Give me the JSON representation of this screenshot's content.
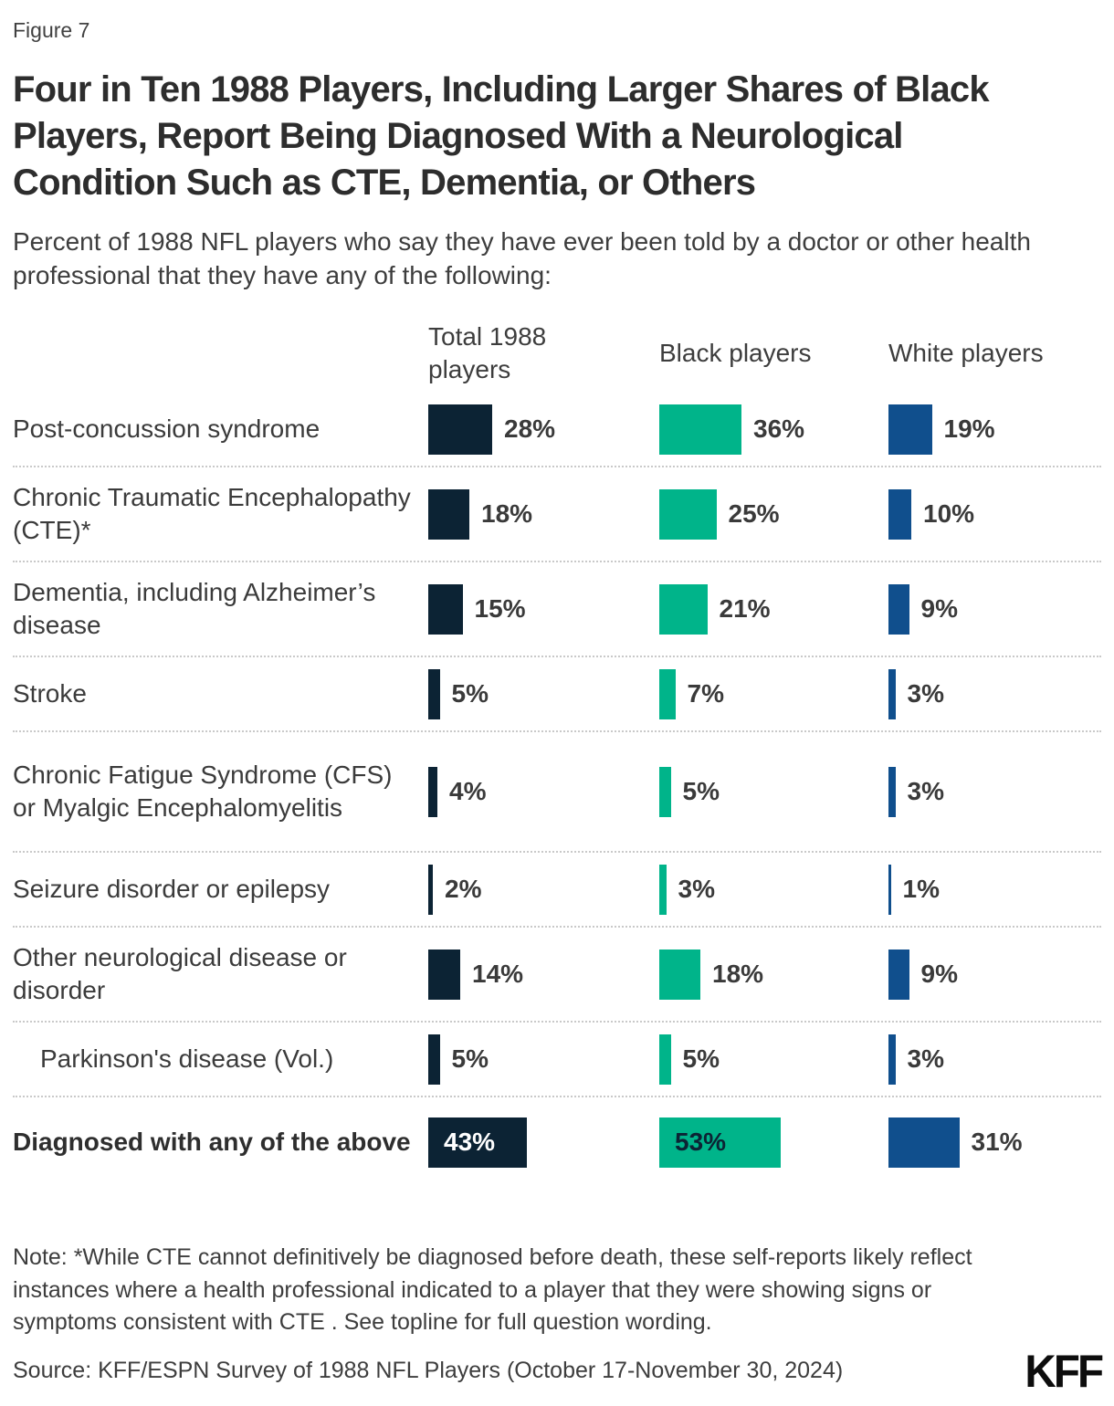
{
  "figure_label": "Figure 7",
  "title": "Four in Ten 1988 Players, Including Larger Shares of Black Players, Report Being Diagnosed With a Neurological Condition Such as CTE, Dementia, or Others",
  "subtitle": "Percent of 1988 NFL players who say they have ever been told by a doctor or other health professional that they have any of the following:",
  "chart_data": {
    "type": "bar",
    "orientation": "horizontal",
    "unit": "%",
    "legend_position": "column-headers",
    "grid": false,
    "xlim": [
      0,
      60
    ],
    "columns": [
      "Total 1988 players",
      "Black players",
      "White players"
    ],
    "series_colors": [
      "#0c2334",
      "#00b48a",
      "#104f8d"
    ],
    "inside_label_colors": [
      "#ffffff",
      "#0c2334",
      "#ffffff"
    ],
    "rows": [
      {
        "label": "Post-concussion syndrome",
        "values": [
          28,
          36,
          19
        ]
      },
      {
        "label": "Chronic Traumatic Encephalopathy (CTE)*",
        "values": [
          18,
          25,
          10
        ]
      },
      {
        "label": "Dementia, including Alzheimer’s disease",
        "values": [
          15,
          21,
          9
        ]
      },
      {
        "label": "Stroke",
        "values": [
          5,
          7,
          3
        ]
      },
      {
        "label": "Chronic Fatigue Syndrome (CFS) or Myalgic Encephalomyelitis",
        "values": [
          4,
          5,
          3
        ]
      },
      {
        "label": "Seizure disorder or epilepsy",
        "values": [
          2,
          3,
          1
        ]
      },
      {
        "label": "Other neurological disease or disorder",
        "values": [
          14,
          18,
          9
        ]
      },
      {
        "label": "Parkinson's disease (Vol.)",
        "values": [
          5,
          5,
          3
        ],
        "indent": true
      },
      {
        "label": "Diagnosed with any of the above",
        "values": [
          43,
          53,
          31
        ],
        "bold": true,
        "inside": [
          true,
          true,
          false
        ]
      }
    ]
  },
  "note": "Note: *While CTE cannot definitively be diagnosed before death, these self-reports likely reflect instances where a health professional indicated to a player that they were showing signs or symptoms consistent with CTE . See topline for full question wording.",
  "source": "Source: KFF/ESPN Survey of 1988 NFL Players (October 17-November 30, 2024)",
  "logo": "KFF"
}
